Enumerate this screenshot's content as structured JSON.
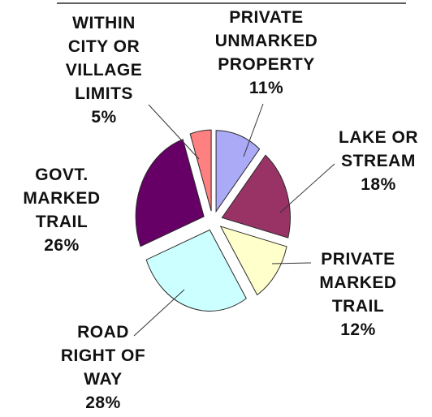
{
  "chart_data": {
    "type": "pie",
    "title": "",
    "exploded": true,
    "slices": [
      {
        "label_lines": [
          "PRIVATE",
          "UNMARKED",
          "PROPERTY"
        ],
        "value_text": "11%",
        "value": 11,
        "color": "#AAAAF6"
      },
      {
        "label_lines": [
          "LAKE OR",
          "STREAM"
        ],
        "value_text": "18%",
        "value": 18,
        "color": "#993366"
      },
      {
        "label_lines": [
          "PRIVATE",
          "MARKED",
          "TRAIL"
        ],
        "value_text": "12%",
        "value": 12,
        "color": "#FFFFCC"
      },
      {
        "label_lines": [
          "ROAD",
          "RIGHT OF",
          "WAY"
        ],
        "value_text": "28%",
        "value": 28,
        "color": "#CCFFFF"
      },
      {
        "label_lines": [
          "GOVT.",
          "MARKED",
          "TRAIL"
        ],
        "value_text": "26%",
        "value": 26,
        "color": "#660066"
      },
      {
        "label_lines": [
          "WITHIN",
          "CITY OR",
          "VILLAGE",
          "LIMITS"
        ],
        "value_text": "5%",
        "value": 5,
        "color": "#FF8080"
      }
    ]
  }
}
